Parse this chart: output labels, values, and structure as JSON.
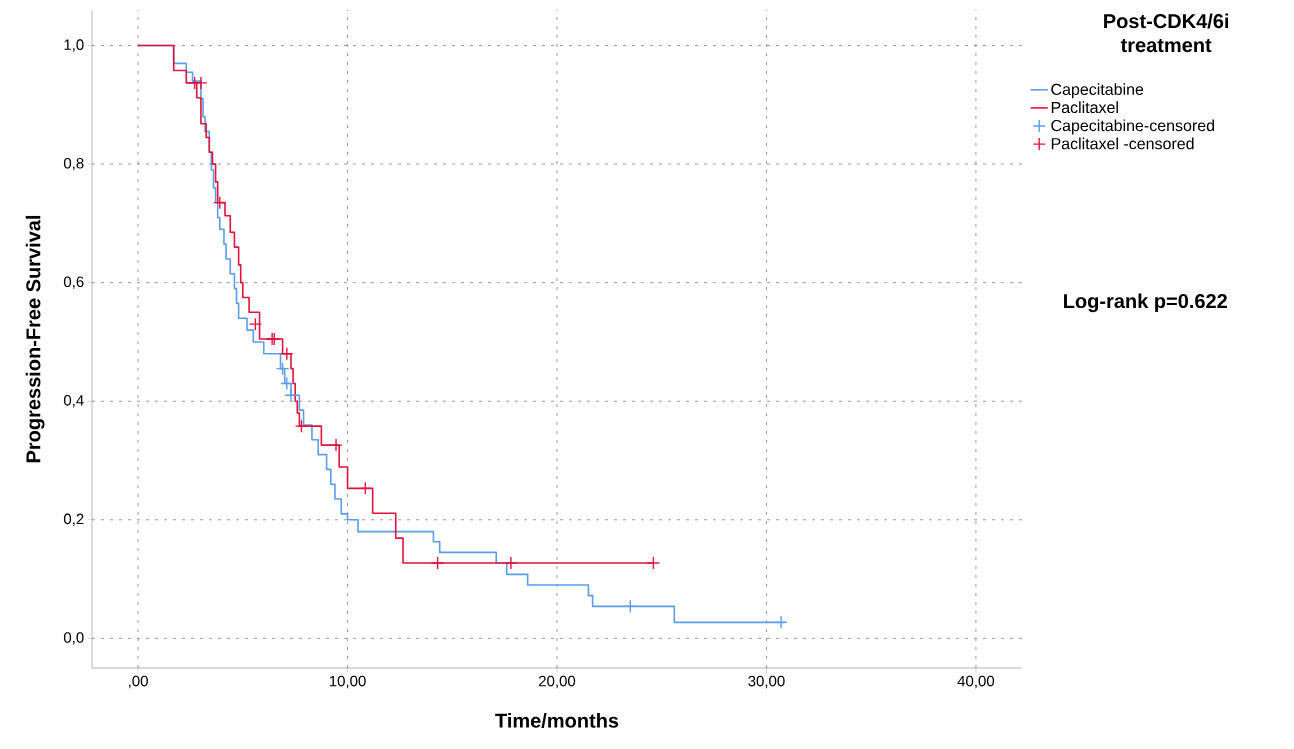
{
  "chart_data": {
    "type": "step",
    "xlabel": "Time/months",
    "ylabel": "Progression-Free Survival",
    "legend_title": "Post-CDK4/6i treatment",
    "annotations": [
      "Log-rank p=0.622"
    ],
    "xlim": [
      -2.2,
      42.2
    ],
    "ylim": [
      -0.05,
      1.06
    ],
    "xticks": [
      {
        "value": 0,
        "label": ",00"
      },
      {
        "value": 10,
        "label": "10,00"
      },
      {
        "value": 20,
        "label": "20,00"
      },
      {
        "value": 30,
        "label": "30,00"
      },
      {
        "value": 40,
        "label": "40,00"
      }
    ],
    "yticks": [
      {
        "value": 0,
        "label": "0,0"
      },
      {
        "value": 0.2,
        "label": "0,2"
      },
      {
        "value": 0.4,
        "label": "0,4"
      },
      {
        "value": 0.6,
        "label": "0,6"
      },
      {
        "value": 0.8,
        "label": "0,8"
      },
      {
        "value": 1.0,
        "label": "1,0"
      }
    ],
    "grid": true,
    "legend": "top right",
    "line_style": "solid",
    "series": [
      {
        "name": "Capecitabine",
        "color": "#5a9ee8",
        "x": [
          0,
          1.7,
          2.3,
          2.6,
          3.0,
          3.1,
          3.2,
          3.4,
          3.5,
          3.6,
          3.7,
          3.8,
          3.9,
          4.1,
          4.2,
          4.4,
          4.6,
          4.7,
          4.8,
          5.2,
          5.5,
          6.0,
          6.8,
          7.0,
          7.3,
          7.7,
          7.9,
          8.3,
          8.6,
          9.0,
          9.2,
          9.4,
          9.7,
          10.0,
          10.5,
          14.1,
          14.4,
          17.1,
          17.6,
          18.6,
          21.5,
          21.7,
          25.6,
          30.9
        ],
        "values": [
          1.0,
          0.97,
          0.955,
          0.94,
          0.91,
          0.88,
          0.855,
          0.82,
          0.79,
          0.76,
          0.735,
          0.71,
          0.69,
          0.665,
          0.64,
          0.615,
          0.59,
          0.565,
          0.54,
          0.52,
          0.5,
          0.48,
          0.455,
          0.43,
          0.41,
          0.385,
          0.36,
          0.335,
          0.31,
          0.285,
          0.26,
          0.235,
          0.21,
          0.2,
          0.18,
          0.163,
          0.145,
          0.127,
          0.108,
          0.09,
          0.072,
          0.054,
          0.027,
          0.027
        ]
      },
      {
        "name": "Paclitaxel",
        "color": "#e0143c",
        "x": [
          0,
          1.7,
          2.3,
          2.8,
          3.0,
          3.25,
          3.4,
          3.55,
          3.7,
          3.8,
          4.15,
          4.4,
          4.6,
          4.8,
          4.9,
          5.0,
          5.3,
          5.8,
          6.9,
          7.3,
          7.4,
          7.5,
          7.6,
          7.7,
          8.75,
          9.6,
          10.0,
          11.2,
          12.3,
          12.65,
          24.6
        ],
        "values": [
          1.0,
          0.958,
          0.937,
          0.912,
          0.868,
          0.845,
          0.82,
          0.8,
          0.77,
          0.735,
          0.713,
          0.685,
          0.66,
          0.63,
          0.6,
          0.575,
          0.55,
          0.505,
          0.48,
          0.455,
          0.43,
          0.4,
          0.38,
          0.358,
          0.326,
          0.289,
          0.253,
          0.211,
          0.169,
          0.127,
          0.127
        ]
      },
      {
        "name": "Capecitabine-censored",
        "type": "scatter",
        "marker": "cross",
        "color": "#5a9ee8",
        "x": [
          6.9,
          7.1,
          7.3,
          23.5,
          30.7
        ],
        "values": [
          0.455,
          0.43,
          0.41,
          0.054,
          0.027
        ]
      },
      {
        "name": "Paclitaxel -censored",
        "type": "scatter",
        "marker": "cross",
        "color": "#e0143c",
        "x": [
          2.7,
          3.0,
          3.9,
          5.6,
          6.4,
          6.5,
          7.1,
          7.8,
          9.45,
          10.85,
          14.3,
          17.8,
          24.6
        ],
        "values": [
          0.937,
          0.937,
          0.735,
          0.53,
          0.505,
          0.505,
          0.48,
          0.358,
          0.326,
          0.253,
          0.127,
          0.127,
          0.127
        ]
      }
    ]
  }
}
